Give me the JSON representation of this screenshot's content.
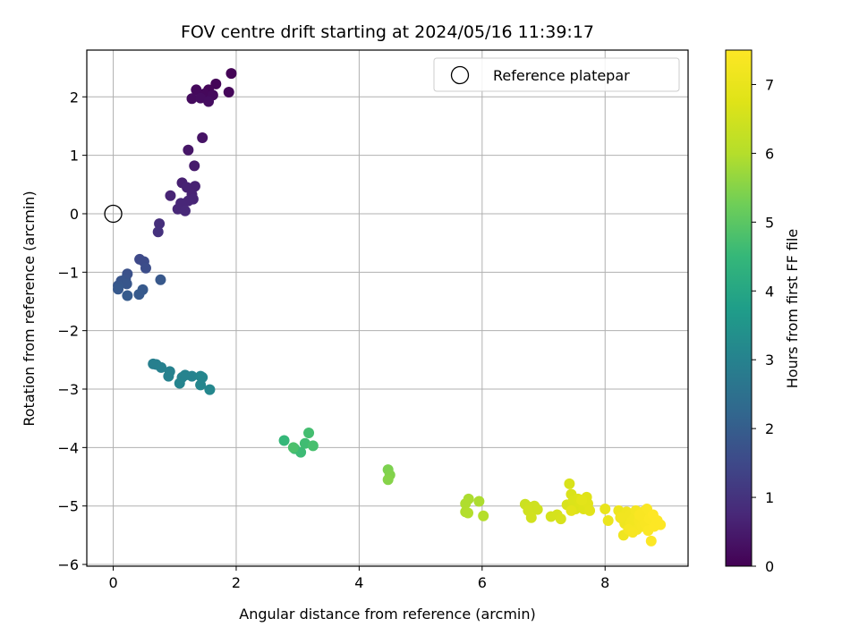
{
  "chart_data": {
    "type": "scatter",
    "title": "FOV centre drift starting at 2024/05/16 11:39:17",
    "xlabel": "Angular distance from reference (arcmin)",
    "ylabel": "Rotation from reference (arcmin)",
    "xlim": [
      -0.43,
      9.35
    ],
    "ylim": [
      -6.03,
      2.8
    ],
    "xticks": [
      0,
      2,
      4,
      6,
      8
    ],
    "yticks": [
      2,
      1,
      0,
      -1,
      -2,
      -3,
      -4,
      -5,
      -6
    ],
    "xtick_labels": [
      "0",
      "2",
      "4",
      "6",
      "8"
    ],
    "ytick_labels": [
      "2",
      "1",
      "0",
      "−1",
      "−2",
      "−3",
      "−4",
      "−5",
      "−6"
    ],
    "grid": true,
    "legend": {
      "placement": "top-right",
      "label": "Reference platepar"
    },
    "colorbar": {
      "label": "Hours from first FF file",
      "range": [
        0,
        7.5
      ],
      "colormap": "viridis",
      "ticks": [
        0,
        1,
        2,
        3,
        4,
        5,
        6,
        7
      ],
      "tick_labels": [
        "0",
        "1",
        "2",
        "3",
        "4",
        "5",
        "6",
        "7"
      ]
    },
    "reference": {
      "x": 0,
      "y": 0
    },
    "points": [
      [
        1.92,
        2.4,
        0.05
      ],
      [
        1.67,
        2.22,
        0.08
      ],
      [
        1.55,
        2.12,
        0.1
      ],
      [
        1.88,
        2.08,
        0.12
      ],
      [
        1.48,
        2.05,
        0.14
      ],
      [
        1.35,
        2.12,
        0.16
      ],
      [
        1.62,
        2.03,
        0.18
      ],
      [
        1.28,
        1.97,
        0.2
      ],
      [
        1.42,
        1.98,
        0.22
      ],
      [
        1.55,
        1.92,
        0.24
      ],
      [
        1.45,
        1.3,
        0.35
      ],
      [
        1.22,
        1.09,
        0.4
      ],
      [
        1.32,
        0.82,
        0.5
      ],
      [
        1.12,
        0.53,
        0.6
      ],
      [
        1.33,
        0.47,
        0.62
      ],
      [
        1.2,
        0.45,
        0.64
      ],
      [
        1.28,
        0.33,
        0.66
      ],
      [
        0.93,
        0.31,
        0.68
      ],
      [
        1.3,
        0.25,
        0.7
      ],
      [
        1.22,
        0.22,
        0.72
      ],
      [
        1.1,
        0.18,
        0.74
      ],
      [
        1.05,
        0.08,
        0.76
      ],
      [
        1.17,
        0.05,
        0.78
      ],
      [
        0.75,
        -0.17,
        0.9
      ],
      [
        0.73,
        -0.31,
        0.95
      ],
      [
        0.43,
        -0.78,
        1.5
      ],
      [
        0.5,
        -0.82,
        1.55
      ],
      [
        0.53,
        -0.93,
        1.6
      ],
      [
        0.23,
        -1.03,
        1.7
      ],
      [
        0.2,
        -1.12,
        1.75
      ],
      [
        0.13,
        -1.15,
        1.8
      ],
      [
        0.22,
        -1.2,
        1.82
      ],
      [
        0.08,
        -1.23,
        1.84
      ],
      [
        0.77,
        -1.13,
        1.86
      ],
      [
        0.08,
        -1.29,
        1.88
      ],
      [
        0.48,
        -1.3,
        1.9
      ],
      [
        0.42,
        -1.38,
        1.92
      ],
      [
        0.23,
        -1.4,
        1.94
      ],
      [
        0.65,
        -2.57,
        2.9
      ],
      [
        0.7,
        -2.58,
        2.92
      ],
      [
        0.78,
        -2.63,
        2.94
      ],
      [
        0.92,
        -2.7,
        2.96
      ],
      [
        0.9,
        -2.78,
        2.98
      ],
      [
        1.12,
        -2.8,
        3.0
      ],
      [
        1.17,
        -2.76,
        3.02
      ],
      [
        1.28,
        -2.78,
        3.04
      ],
      [
        1.08,
        -2.9,
        3.06
      ],
      [
        1.42,
        -2.78,
        3.08
      ],
      [
        1.45,
        -2.8,
        3.1
      ],
      [
        1.42,
        -2.93,
        3.12
      ],
      [
        1.57,
        -3.01,
        3.14
      ],
      [
        2.78,
        -3.88,
        4.5
      ],
      [
        2.95,
        -4.02,
        4.55
      ],
      [
        3.05,
        -4.08,
        4.6
      ],
      [
        3.12,
        -3.93,
        4.65
      ],
      [
        3.18,
        -3.75,
        4.7
      ],
      [
        3.25,
        -3.97,
        4.75
      ],
      [
        2.93,
        -4.0,
        4.8
      ],
      [
        4.47,
        -4.38,
        5.4
      ],
      [
        4.5,
        -4.47,
        5.45
      ],
      [
        4.47,
        -4.55,
        5.5
      ],
      [
        5.78,
        -4.88,
        5.9
      ],
      [
        5.95,
        -4.92,
        5.92
      ],
      [
        5.73,
        -4.96,
        5.94
      ],
      [
        5.73,
        -5.1,
        5.96
      ],
      [
        5.77,
        -5.12,
        5.98
      ],
      [
        6.02,
        -5.17,
        6.0
      ],
      [
        6.7,
        -4.97,
        6.4
      ],
      [
        6.77,
        -5.02,
        6.42
      ],
      [
        6.85,
        -5.0,
        6.44
      ],
      [
        6.9,
        -5.06,
        6.46
      ],
      [
        6.75,
        -5.08,
        6.48
      ],
      [
        6.8,
        -5.2,
        6.5
      ],
      [
        7.12,
        -5.18,
        6.55
      ],
      [
        7.22,
        -5.15,
        6.58
      ],
      [
        7.28,
        -5.22,
        6.6
      ],
      [
        7.38,
        -4.98,
        6.62
      ],
      [
        7.42,
        -4.62,
        6.64
      ],
      [
        7.45,
        -4.8,
        6.66
      ],
      [
        7.48,
        -4.92,
        6.68
      ],
      [
        7.52,
        -5.05,
        6.7
      ],
      [
        7.56,
        -4.88,
        6.72
      ],
      [
        7.6,
        -4.95,
        6.74
      ],
      [
        7.65,
        -5.05,
        6.76
      ],
      [
        7.7,
        -4.85,
        6.78
      ],
      [
        7.72,
        -4.96,
        6.8
      ],
      [
        7.75,
        -5.08,
        6.82
      ],
      [
        7.45,
        -5.08,
        6.84
      ],
      [
        7.62,
        -4.9,
        6.86
      ],
      [
        8.0,
        -5.05,
        7.0
      ],
      [
        8.05,
        -5.25,
        7.05
      ],
      [
        8.22,
        -5.08,
        7.1
      ],
      [
        8.28,
        -5.22,
        7.12
      ],
      [
        8.32,
        -5.3,
        7.14
      ],
      [
        8.3,
        -5.5,
        7.16
      ],
      [
        8.35,
        -5.1,
        7.18
      ],
      [
        8.4,
        -5.15,
        7.2
      ],
      [
        8.42,
        -5.28,
        7.22
      ],
      [
        8.45,
        -5.35,
        7.24
      ],
      [
        8.48,
        -5.2,
        7.26
      ],
      [
        8.5,
        -5.08,
        7.28
      ],
      [
        8.52,
        -5.4,
        7.3
      ],
      [
        8.55,
        -5.25,
        7.32
      ],
      [
        8.58,
        -5.18,
        7.34
      ],
      [
        8.6,
        -5.35,
        7.36
      ],
      [
        8.62,
        -5.1,
        7.38
      ],
      [
        8.65,
        -5.3,
        7.4
      ],
      [
        8.68,
        -5.05,
        7.42
      ],
      [
        8.7,
        -5.42,
        7.44
      ],
      [
        8.72,
        -5.22,
        7.46
      ],
      [
        8.75,
        -5.6,
        7.48
      ],
      [
        8.78,
        -5.15,
        7.5
      ],
      [
        8.8,
        -5.35,
        7.5
      ],
      [
        8.85,
        -5.25,
        7.5
      ],
      [
        8.9,
        -5.32,
        7.5
      ],
      [
        8.38,
        -5.4,
        7.3
      ],
      [
        8.45,
        -5.45,
        7.35
      ],
      [
        8.56,
        -5.15,
        7.4
      ],
      [
        8.25,
        -5.2,
        7.2
      ]
    ]
  }
}
